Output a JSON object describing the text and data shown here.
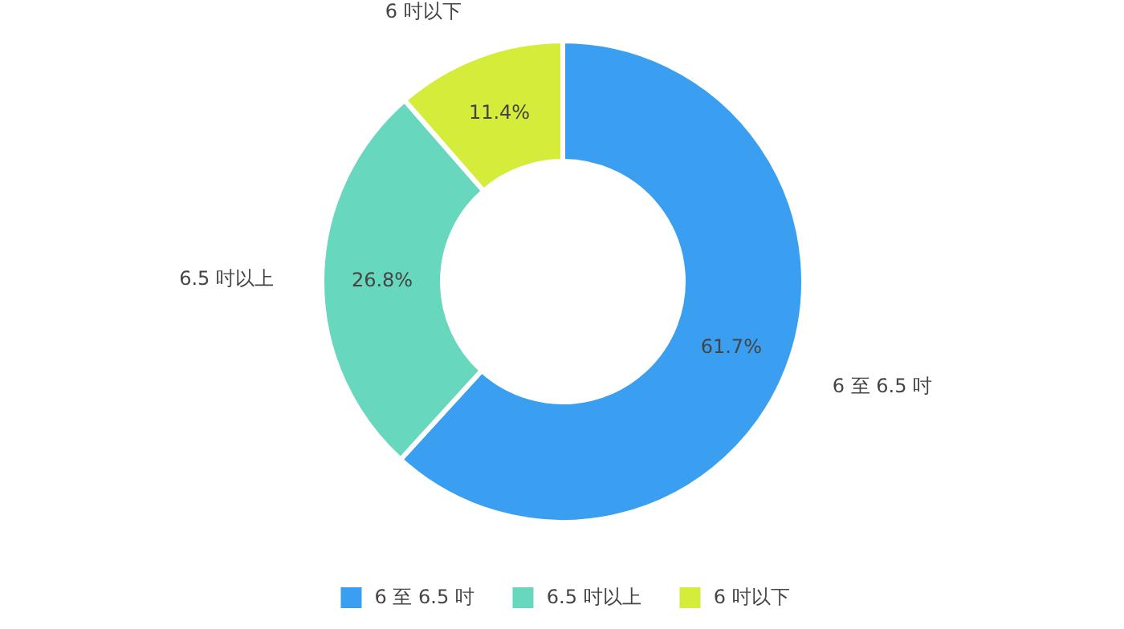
{
  "chart_data": {
    "type": "donut",
    "categories": [
      "6 至 6.5 吋",
      "6.5 吋以上",
      "6 吋以下"
    ],
    "values": [
      61.7,
      26.8,
      11.4
    ],
    "colors": [
      "#3a9ff0",
      "#67d8bd",
      "#d5ec3a"
    ],
    "value_labels": [
      "61.7%",
      "26.8%",
      "11.4%"
    ],
    "legend": "bottom"
  }
}
